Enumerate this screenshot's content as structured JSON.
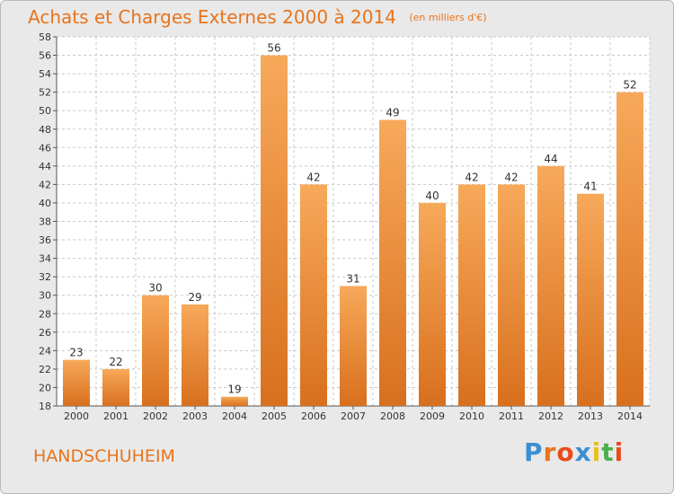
{
  "header": {
    "title": "Achats et Charges Externes 2000 à 2014",
    "subtitle": "(en milliers d'€)"
  },
  "footer": {
    "location": "HANDSCHUHEIM",
    "logo_text": "Proxiti",
    "logo_colors": [
      "#3b8fd1",
      "#e8741c",
      "#e84c1c",
      "#3b8fd1",
      "#e8c01c",
      "#4bb04b",
      "#e84c1c"
    ]
  },
  "colors": {
    "bar_light": "#f7a95a",
    "bar_dark": "#d8701e",
    "grid": "#c8c8c8",
    "plot_bg": "#ffffff",
    "accent": "#e8741c"
  },
  "chart_data": {
    "type": "bar",
    "title": "Achats et Charges Externes 2000 à 2014",
    "subtitle": "(en milliers d'€)",
    "categories": [
      "2000",
      "2001",
      "2002",
      "2003",
      "2004",
      "2005",
      "2006",
      "2007",
      "2008",
      "2009",
      "2010",
      "2011",
      "2012",
      "2013",
      "2014"
    ],
    "values": [
      23,
      22,
      30,
      29,
      19,
      56,
      42,
      31,
      49,
      40,
      42,
      42,
      44,
      41,
      52
    ],
    "ylim": [
      18,
      58
    ],
    "yticks": [
      18,
      20,
      22,
      24,
      26,
      28,
      30,
      32,
      34,
      36,
      38,
      40,
      42,
      44,
      46,
      48,
      50,
      52,
      54,
      56,
      58
    ],
    "grid": true,
    "xlabel": "",
    "ylabel": ""
  }
}
